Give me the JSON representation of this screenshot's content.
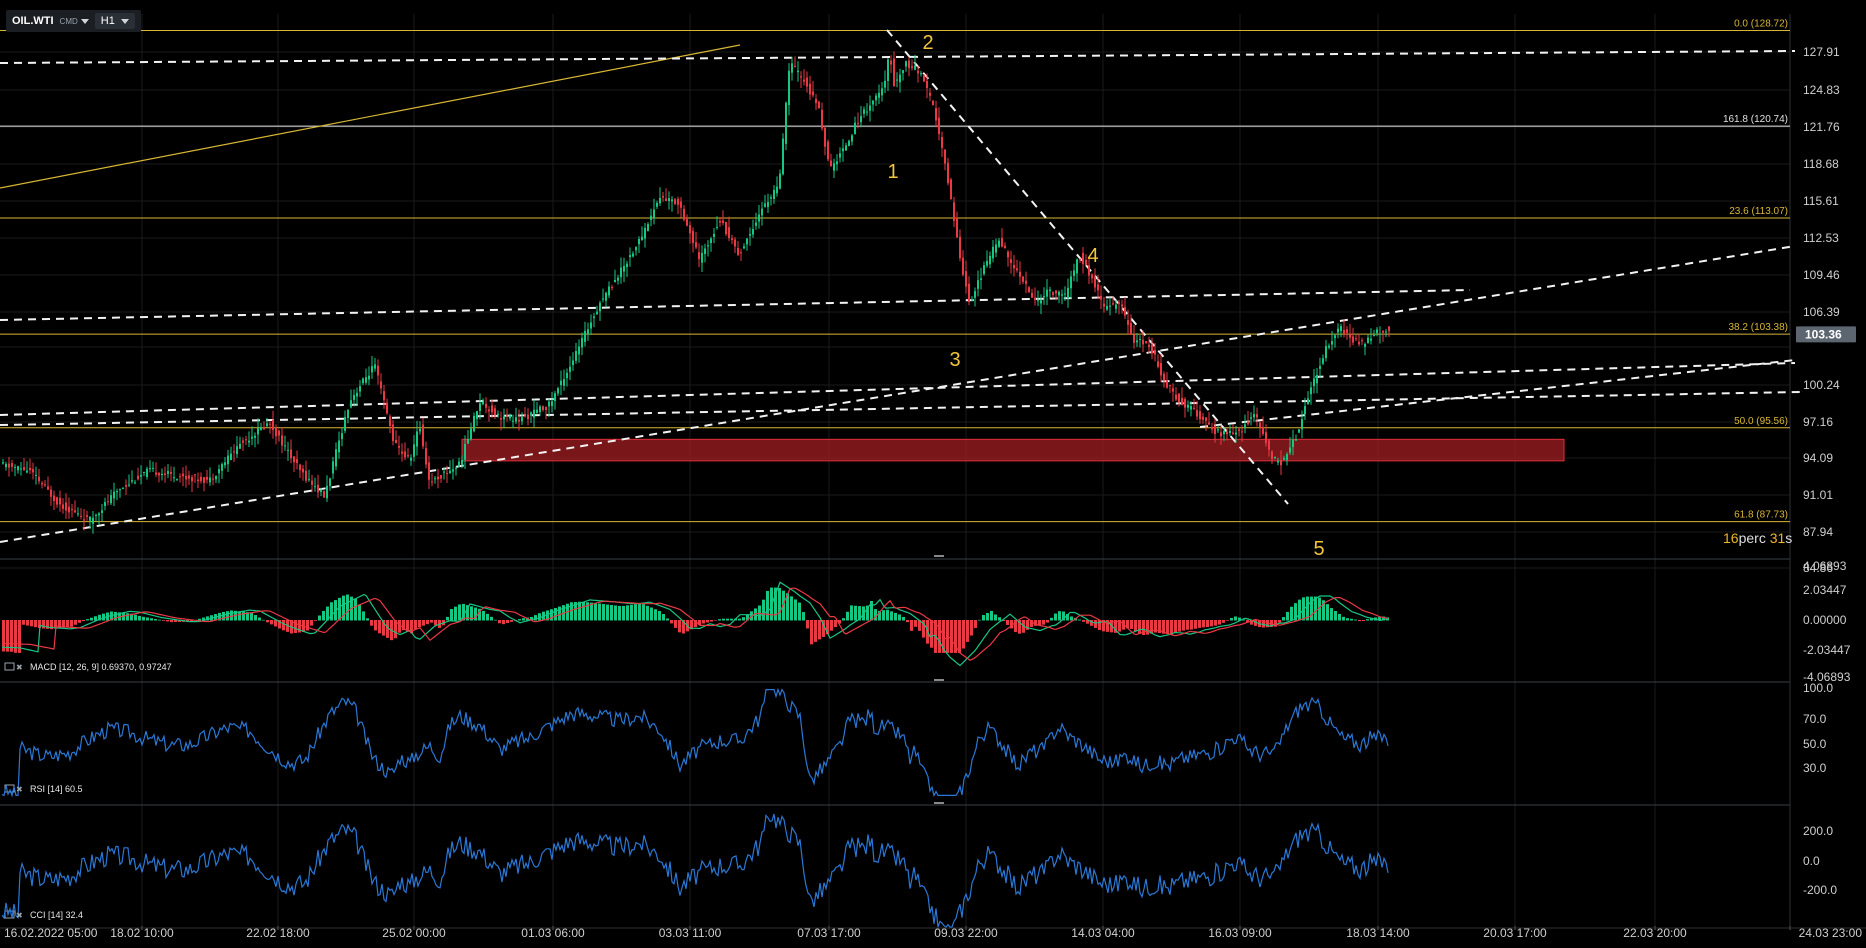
{
  "toolbar": {
    "symbol": "OIL.WTI",
    "type": "CMD",
    "timeframe": "H1"
  },
  "timer": {
    "a": "16",
    "b": "perc",
    "c": "31",
    "d": "s"
  },
  "chart_data": {
    "type": "candlestick",
    "price_ticks": [
      "127.91",
      "124.83",
      "121.76",
      "118.68",
      "115.61",
      "112.53",
      "109.46",
      "106.39",
      "103.36",
      "100.24",
      "97.16",
      "94.09",
      "91.01",
      "87.94",
      "84.86"
    ],
    "price_range": [
      84.86,
      130.1
    ],
    "last_price": "103.36",
    "fib_labels": [
      {
        "label": "0.0 (128.72)",
        "value": 128.72
      },
      {
        "label": "161.8 (120.74)",
        "value": 120.74
      },
      {
        "label": "23.6 (113.07)",
        "value": 113.07
      },
      {
        "label": "38.2 (103.38)",
        "value": 103.38
      },
      {
        "label": "50.0 (95.56)",
        "value": 95.56
      },
      {
        "label": "61.8 (87.73)",
        "value": 87.73
      }
    ],
    "wave_labels": [
      "1",
      "2",
      "3",
      "4",
      "5"
    ],
    "x_ticks": [
      "16.02.2022 05:00",
      "18.02 10:00",
      "22.02 18:00",
      "25.02 00:00",
      "01.03 06:00",
      "03.03 11:00",
      "07.03 17:00",
      "09.03 22:00",
      "14.03 04:00",
      "16.03 09:00",
      "18.03 14:00",
      "20.03 17:00",
      "22.03 20:00",
      "24.03 23:00"
    ],
    "support_zone": [
      92.8,
      94.6
    ],
    "price_path": [
      [
        0,
        92.5
      ],
      [
        30,
        92.0
      ],
      [
        60,
        89.2
      ],
      [
        90,
        87.8
      ],
      [
        120,
        90.5
      ],
      [
        150,
        92.0
      ],
      [
        180,
        91.5
      ],
      [
        210,
        91.2
      ],
      [
        240,
        94.2
      ],
      [
        270,
        96.0
      ],
      [
        300,
        92.0
      ],
      [
        325,
        89.8
      ],
      [
        350,
        97.8
      ],
      [
        375,
        100.8
      ],
      [
        395,
        94.2
      ],
      [
        410,
        92.8
      ],
      [
        420,
        95.8
      ],
      [
        430,
        91.0
      ],
      [
        460,
        92.5
      ],
      [
        480,
        97.8
      ],
      [
        500,
        96.5
      ],
      [
        520,
        96.2
      ],
      [
        550,
        97.5
      ],
      [
        575,
        101.5
      ],
      [
        600,
        106.0
      ],
      [
        620,
        108.5
      ],
      [
        640,
        111.2
      ],
      [
        660,
        114.8
      ],
      [
        680,
        114.3
      ],
      [
        700,
        109.5
      ],
      [
        720,
        113.0
      ],
      [
        740,
        110.0
      ],
      [
        760,
        113.5
      ],
      [
        780,
        116.0
      ],
      [
        790,
        126.0
      ],
      [
        805,
        124.5
      ],
      [
        820,
        122.0
      ],
      [
        830,
        117.0
      ],
      [
        845,
        119.0
      ],
      [
        860,
        121.5
      ],
      [
        875,
        123.0
      ],
      [
        885,
        124.0
      ],
      [
        890,
        127.0
      ],
      [
        895,
        124.0
      ],
      [
        905,
        126.0
      ],
      [
        920,
        125.3
      ],
      [
        935,
        122.0
      ],
      [
        950,
        115.5
      ],
      [
        960,
        110.0
      ],
      [
        970,
        106.0
      ],
      [
        985,
        109.0
      ],
      [
        1000,
        111.5
      ],
      [
        1012,
        109.0
      ],
      [
        1020,
        108.5
      ],
      [
        1035,
        106.0
      ],
      [
        1050,
        107.0
      ],
      [
        1065,
        106.5
      ],
      [
        1080,
        110.0
      ],
      [
        1095,
        107.5
      ],
      [
        1105,
        105.5
      ],
      [
        1120,
        106.0
      ],
      [
        1135,
        102.8
      ],
      [
        1150,
        102.5
      ],
      [
        1165,
        99.5
      ],
      [
        1180,
        97.8
      ],
      [
        1195,
        97.0
      ],
      [
        1210,
        95.5
      ],
      [
        1225,
        95.0
      ],
      [
        1240,
        95.2
      ],
      [
        1255,
        96.8
      ],
      [
        1270,
        93.5
      ],
      [
        1280,
        92.5
      ],
      [
        1295,
        94.5
      ],
      [
        1310,
        98.5
      ],
      [
        1325,
        102.0
      ],
      [
        1340,
        104.0
      ],
      [
        1350,
        103.0
      ],
      [
        1362,
        102.5
      ],
      [
        1372,
        103.3
      ],
      [
        1388,
        103.8
      ]
    ],
    "indicators": [
      {
        "name": "MACD",
        "params": "[12, 26, 9]",
        "values": "0.69370,  0.97247",
        "ticks": [
          "4.06893",
          "2.03447",
          "0.00000",
          "-2.03447",
          "-4.06893"
        ],
        "range": [
          -4.06893,
          4.06893
        ]
      },
      {
        "name": "RSI",
        "params": "[14]",
        "values": "60.5",
        "ticks": [
          "100.0",
          "70.0",
          "50.0",
          "30.0"
        ],
        "range": [
          10,
          100
        ]
      },
      {
        "name": "CCI",
        "params": "[14]",
        "values": "32.4",
        "ticks": [
          "200.0",
          "0.0",
          "-200.0"
        ],
        "range": [
          -350,
          350
        ]
      }
    ]
  },
  "colors": {
    "up": "#16c784",
    "down": "#ea3943",
    "fib": "#d7b634",
    "macd": "#16c784",
    "signal": "#ea3943",
    "osc": "#2a78d6",
    "zone": "#a11d22"
  }
}
